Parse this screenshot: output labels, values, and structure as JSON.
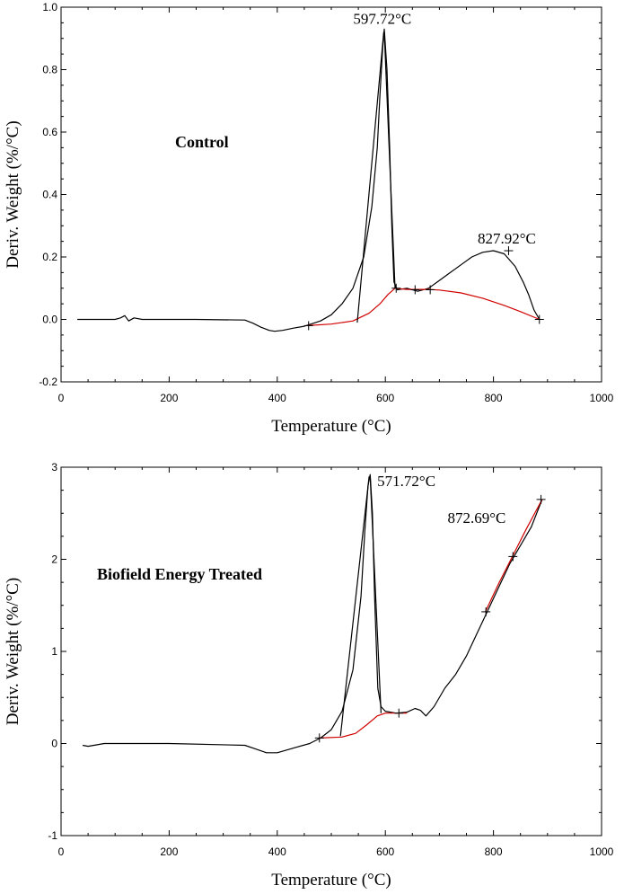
{
  "chart_data": [
    {
      "type": "line",
      "xlabel": "Temperature (°C)",
      "ylabel": "Deriv. Weight (%/°C)",
      "xlim": [
        0,
        1000
      ],
      "ylim": [
        -0.2,
        1.0
      ],
      "xticks": [
        0,
        200,
        400,
        600,
        800,
        1000
      ],
      "yticks": [
        -0.2,
        0.0,
        0.2,
        0.4,
        0.6,
        0.8,
        1.0
      ],
      "ytick_labels": [
        "-0.2",
        "0.0",
        "0.2",
        "0.4",
        "0.6",
        "0.8",
        "1.0"
      ],
      "sample_label": "Control",
      "grid": false,
      "annotations": [
        {
          "text": "597.72°C",
          "x": 597.72,
          "y": 0.93
        },
        {
          "text": "827.92°C",
          "x": 827.92,
          "y": 0.22
        }
      ],
      "series": [
        {
          "color": "#000000",
          "x": [
            30,
            100,
            110,
            118,
            125,
            135,
            150,
            250,
            340,
            355,
            370,
            385,
            395,
            410,
            430,
            450,
            480,
            500,
            520,
            540,
            560,
            575,
            585,
            590,
            595,
            598,
            603,
            608,
            612,
            616,
            622,
            640,
            660,
            680,
            700,
            720,
            740,
            760,
            780,
            800,
            820,
            840,
            855,
            865,
            875,
            885
          ],
          "y": [
            0.0,
            0.0,
            0.005,
            0.012,
            -0.005,
            0.005,
            0.0,
            0.0,
            -0.002,
            -0.012,
            -0.025,
            -0.035,
            -0.038,
            -0.035,
            -0.028,
            -0.022,
            -0.005,
            0.015,
            0.05,
            0.1,
            0.2,
            0.36,
            0.55,
            0.72,
            0.87,
            0.93,
            0.8,
            0.55,
            0.3,
            0.12,
            0.095,
            0.1,
            0.09,
            0.1,
            0.125,
            0.15,
            0.175,
            0.2,
            0.215,
            0.22,
            0.21,
            0.17,
            0.12,
            0.08,
            0.03,
            0.0
          ]
        },
        {
          "color": "#d00000",
          "x": [
            455,
            500,
            540,
            570,
            590,
            605,
            618,
            640,
            660,
            680,
            700,
            740,
            780,
            820,
            850,
            885
          ],
          "y": [
            -0.02,
            -0.015,
            -0.005,
            0.02,
            0.05,
            0.08,
            0.1,
            0.096,
            0.096,
            0.096,
            0.094,
            0.085,
            0.068,
            0.045,
            0.025,
            0.0
          ]
        },
        {
          "color": "#000000",
          "x": [
            548,
            597
          ],
          "y": [
            -0.01,
            0.92
          ]
        },
        {
          "color": "#000000",
          "x": [
            598,
            618
          ],
          "y": [
            0.92,
            0.1
          ]
        }
      ],
      "markers": [
        {
          "x": 458,
          "y": -0.02
        },
        {
          "x": 620,
          "y": 0.1
        },
        {
          "x": 655,
          "y": 0.095
        },
        {
          "x": 683,
          "y": 0.095
        },
        {
          "x": 828,
          "y": 0.22
        },
        {
          "x": 885,
          "y": 0.0
        }
      ]
    },
    {
      "type": "line",
      "xlabel": "Temperature (°C)",
      "ylabel": "Deriv. Weight (%/°C)",
      "xlim": [
        0,
        1000
      ],
      "ylim": [
        -1,
        3
      ],
      "xticks": [
        0,
        200,
        400,
        600,
        800,
        1000
      ],
      "yticks": [
        -1,
        0,
        1,
        2,
        3
      ],
      "ytick_labels": [
        "-1",
        "0",
        "1",
        "2",
        "3"
      ],
      "sample_label": "Biofield Energy Treated",
      "grid": false,
      "annotations": [
        {
          "text": "571.72°C",
          "x": 571.72,
          "y": 2.95
        },
        {
          "text": "872.69°C",
          "x": 872.69,
          "y": 2.2
        }
      ],
      "series": [
        {
          "color": "#000000",
          "x": [
            40,
            50,
            80,
            200,
            340,
            360,
            380,
            400,
            430,
            460,
            480,
            500,
            520,
            540,
            555,
            562,
            568,
            572,
            576,
            580,
            586,
            592,
            600,
            620,
            640,
            655,
            665,
            675,
            690,
            710,
            730,
            750,
            770,
            790,
            810,
            830,
            850,
            870,
            890
          ],
          "y": [
            -0.02,
            -0.03,
            0.0,
            0.0,
            -0.02,
            -0.06,
            -0.1,
            -0.1,
            -0.05,
            0.0,
            0.06,
            0.15,
            0.35,
            0.8,
            1.6,
            2.3,
            2.8,
            2.92,
            2.5,
            1.6,
            0.6,
            0.4,
            0.35,
            0.33,
            0.34,
            0.38,
            0.36,
            0.3,
            0.4,
            0.6,
            0.75,
            0.95,
            1.2,
            1.45,
            1.7,
            1.95,
            2.15,
            2.35,
            2.65
          ]
        },
        {
          "color": "#d00000",
          "x": [
            478,
            520,
            545,
            565,
            585,
            600,
            625,
            640
          ],
          "y": [
            0.06,
            0.07,
            0.11,
            0.2,
            0.3,
            0.33,
            0.33,
            0.33
          ]
        },
        {
          "color": "#d00000",
          "x": [
            785,
            810,
            835,
            860,
            890
          ],
          "y": [
            1.43,
            1.74,
            2.03,
            2.32,
            2.65
          ]
        },
        {
          "color": "#000000",
          "x": [
            517,
            570
          ],
          "y": [
            0.08,
            2.9
          ]
        },
        {
          "color": "#000000",
          "x": [
            572,
            592
          ],
          "y": [
            2.9,
            0.33
          ]
        }
      ],
      "markers": [
        {
          "x": 478,
          "y": 0.06
        },
        {
          "x": 625,
          "y": 0.33
        },
        {
          "x": 786,
          "y": 1.43
        },
        {
          "x": 836,
          "y": 2.03
        },
        {
          "x": 888,
          "y": 2.65
        }
      ]
    }
  ]
}
